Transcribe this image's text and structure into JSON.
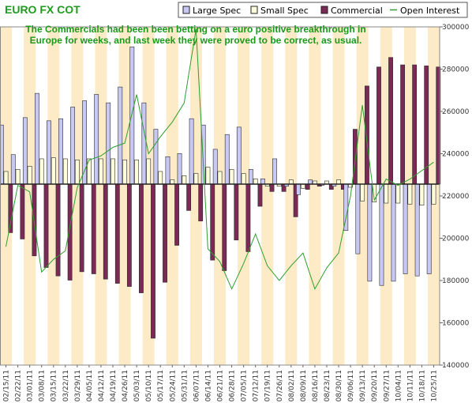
{
  "colors": {
    "band": "#fdebc8",
    "large_spec": "#c8c8f4",
    "small_spec": "#fefeda",
    "commercial": "#7b2a55",
    "open_interest": "#2e9e2e",
    "title": "#1f9b1f",
    "annotation": "#1a9a1a"
  },
  "chart_data": {
    "type": "bar",
    "title": "EURO FX COT",
    "annotation": [
      "The Commercials had been been betting on a euro positive breakthrough in",
      "Europe for weeks, and last week they were proved to be correct, as usual."
    ],
    "legend": [
      {
        "label": "Large Spec",
        "marker": "box",
        "color": "#c8c8f4"
      },
      {
        "label": "Small Spec",
        "marker": "box",
        "color": "#fefeda"
      },
      {
        "label": "Commercial",
        "marker": "box",
        "color": "#7b2a55"
      },
      {
        "label": "Open Interest",
        "marker": "line",
        "color": "#2e9e2e"
      }
    ],
    "legend_position": "top-right",
    "categories": [
      "02/15/11",
      "02/22/11",
      "03/01/11",
      "03/08/11",
      "03/15/11",
      "03/22/11",
      "03/29/11",
      "04/05/11",
      "04/12/11",
      "04/19/11",
      "04/26/11",
      "05/03/11",
      "05/10/11",
      "05/17/11",
      "05/24/11",
      "05/31/11",
      "06/07/11",
      "06/14/11",
      "06/21/11",
      "06/28/11",
      "07/05/11",
      "07/12/11",
      "07/19/11",
      "07/26/11",
      "08/02/11",
      "08/09/11",
      "08/16/11",
      "08/23/11",
      "08/30/11",
      "09/06/11",
      "09/13/11",
      "09/20/11",
      "09/27/11",
      "10/04/11",
      "10/11/11",
      "10/18/11",
      "10/25/11"
    ],
    "position_axis": {
      "unit": "contracts",
      "zero_baseline": true
    },
    "series": [
      {
        "name": "Large Spec",
        "values": [
          56000,
          28000,
          63000,
          86000,
          60000,
          62000,
          73000,
          79000,
          85000,
          77000,
          92000,
          130000,
          77000,
          52000,
          26000,
          29000,
          62000,
          56000,
          33000,
          47000,
          54000,
          14000,
          5000,
          24000,
          -2000,
          -10000,
          4000,
          -1000,
          -2000,
          -44000,
          -66000,
          -92000,
          -96000,
          -92000,
          -85000,
          -87000,
          -85000
        ]
      },
      {
        "name": "Small Spec",
        "values": [
          12000,
          14000,
          17000,
          24000,
          25000,
          24000,
          23000,
          24000,
          24000,
          24000,
          23000,
          23000,
          24000,
          12000,
          4000,
          8000,
          10000,
          16000,
          12000,
          14000,
          10000,
          5000,
          -2000,
          -2000,
          4000,
          -4000,
          3000,
          3000,
          4000,
          -3000,
          -16000,
          -17000,
          -18000,
          -18000,
          -19000,
          -20000,
          -19000
        ]
      },
      {
        "name": "Commercial",
        "values": [
          -46000,
          -52000,
          -68000,
          -79000,
          -87000,
          -91000,
          -83000,
          -85000,
          -90000,
          -94000,
          -97000,
          -103000,
          -146000,
          -93000,
          -58000,
          -25000,
          -35000,
          -72000,
          -82000,
          -53000,
          -64000,
          -21000,
          -7000,
          -7000,
          -31000,
          -5000,
          -2000,
          -5000,
          -5000,
          52000,
          93000,
          111000,
          120000,
          113000,
          113000,
          112000,
          111000
        ]
      },
      {
        "name": "Open Interest",
        "axis": "right",
        "values": [
          196000,
          225000,
          222000,
          184000,
          190000,
          194000,
          224000,
          237000,
          239000,
          243000,
          245000,
          268000,
          240000,
          248000,
          255000,
          264000,
          299000,
          195000,
          189000,
          176000,
          188000,
          202000,
          187000,
          180000,
          187000,
          193000,
          176000,
          186000,
          193000,
          220000,
          263000,
          218000,
          228000,
          225000,
          228000,
          232000,
          236000
        ]
      }
    ],
    "y_right": {
      "ticks": [
        140000,
        160000,
        180000,
        200000,
        220000,
        240000,
        260000,
        280000,
        300000
      ],
      "tick_labels": [
        "140000",
        "160000",
        "180000",
        "200000",
        "220000",
        "240000",
        "260000",
        "280000",
        "300000"
      ],
      "ylim": [
        140000,
        300000
      ]
    },
    "grid": false
  }
}
